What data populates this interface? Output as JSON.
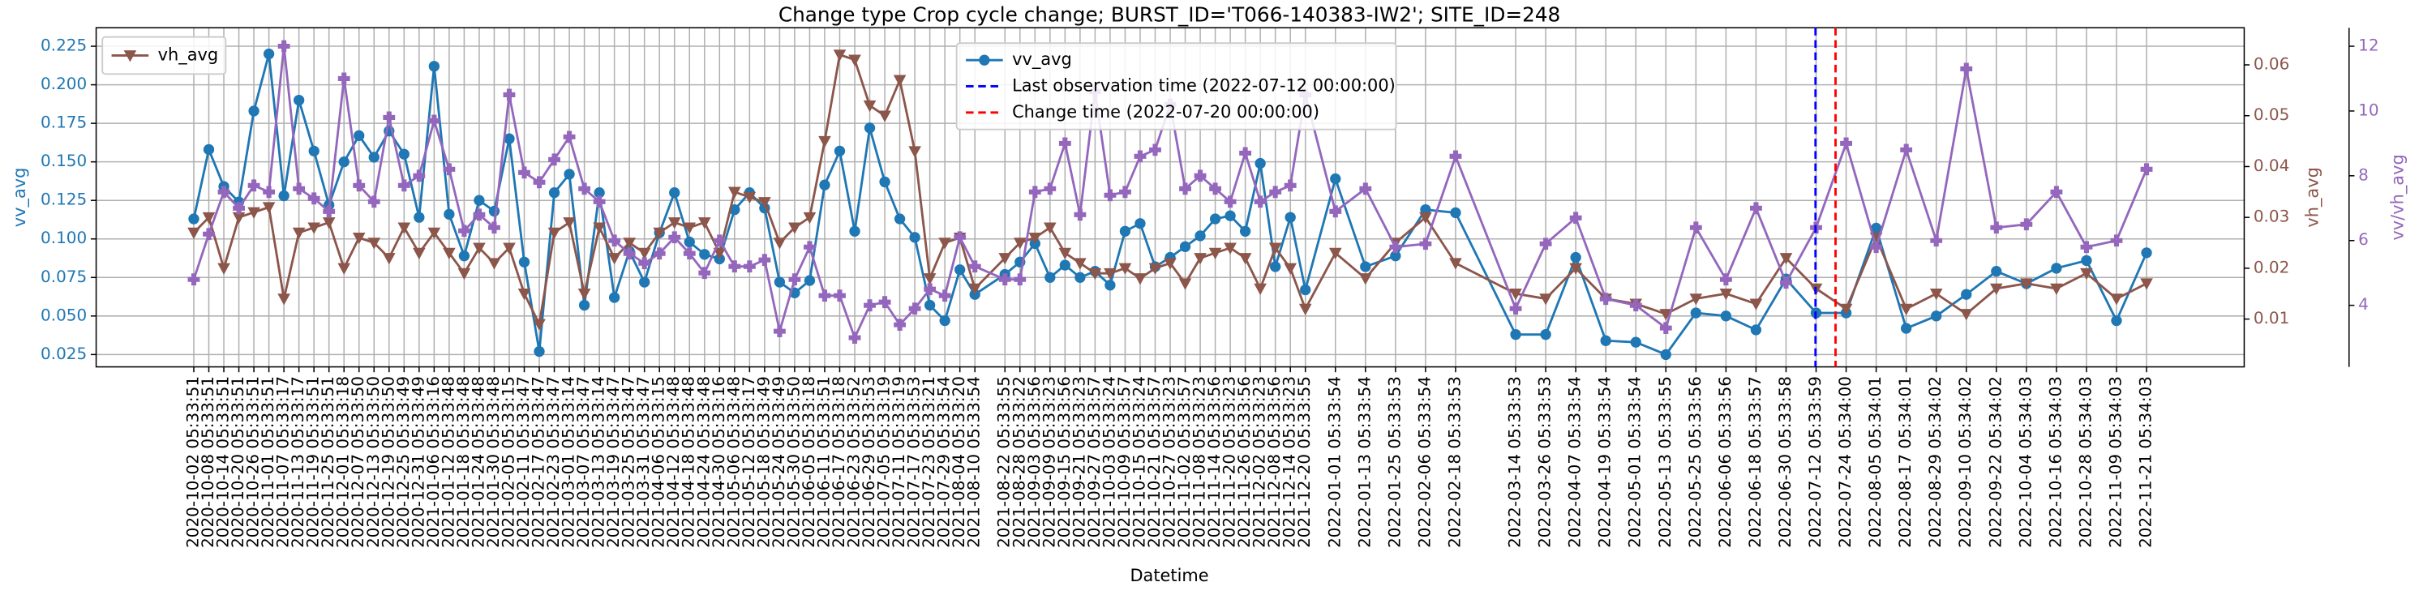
{
  "chart_data": {
    "type": "line",
    "title": "Change type Crop cycle change; BURST_ID='T066-140383-IW2'; SITE_ID=248",
    "x_label": "Datetime",
    "y_label": "vv_avg",
    "y2_label": "vh_avg",
    "y3_label": "vv/vh_avg",
    "grid": true,
    "x": [
      "2020-10-02 05:33:51",
      "2020-10-08 05:33:51",
      "2020-10-14 05:33:51",
      "2020-10-20 05:33:51",
      "2020-10-26 05:33:51",
      "2020-11-01 05:33:51",
      "2020-11-07 05:33:17",
      "2020-11-13 05:33:17",
      "2020-11-19 05:33:51",
      "2020-11-25 05:33:51",
      "2020-12-01 05:33:18",
      "2020-12-07 05:33:50",
      "2020-12-13 05:33:50",
      "2020-12-19 05:33:50",
      "2020-12-25 05:33:49",
      "2020-12-31 05:33:49",
      "2021-01-06 05:33:16",
      "2021-01-12 05:33:48",
      "2021-01-18 05:33:48",
      "2021-01-24 05:33:48",
      "2021-01-30 05:33:48",
      "2021-02-05 05:33:15",
      "2021-02-11 05:33:47",
      "2021-02-17 05:33:47",
      "2021-02-23 05:33:47",
      "2021-03-01 05:33:14",
      "2021-03-07 05:33:47",
      "2021-03-13 05:33:14",
      "2021-03-19 05:33:47",
      "2021-03-25 05:33:47",
      "2021-03-31 05:33:47",
      "2021-04-06 05:33:15",
      "2021-04-12 05:33:48",
      "2021-04-18 05:33:48",
      "2021-04-24 05:33:48",
      "2021-04-30 05:33:16",
      "2021-05-06 05:33:48",
      "2021-05-12 05:33:17",
      "2021-05-18 05:33:49",
      "2021-05-24 05:33:49",
      "2021-05-30 05:33:50",
      "2021-06-05 05:33:18",
      "2021-06-11 05:33:51",
      "2021-06-17 05:33:18",
      "2021-06-23 05:33:52",
      "2021-06-29 05:33:53",
      "2021-07-05 05:33:19",
      "2021-07-11 05:33:19",
      "2021-07-17 05:33:53",
      "2021-07-23 05:33:21",
      "2021-07-29 05:33:54",
      "2021-08-04 05:33:20",
      "2021-08-10 05:33:54",
      "2021-08-22 05:33:55",
      "2021-08-28 05:33:22",
      "2021-09-03 05:33:56",
      "2021-09-09 05:33:23",
      "2021-09-15 05:33:56",
      "2021-09-21 05:33:23",
      "2021-09-27 05:33:57",
      "2021-10-03 05:33:24",
      "2021-10-09 05:33:57",
      "2021-10-15 05:33:24",
      "2021-10-21 05:33:57",
      "2021-10-27 05:33:23",
      "2021-11-02 05:33:57",
      "2021-11-08 05:33:23",
      "2021-11-14 05:33:56",
      "2021-11-20 05:33:23",
      "2021-11-26 05:33:56",
      "2021-12-02 05:33:23",
      "2021-12-08 05:33:56",
      "2021-12-14 05:33:23",
      "2021-12-20 05:33:55",
      "2022-01-01 05:33:54",
      "2022-01-13 05:33:54",
      "2022-01-25 05:33:53",
      "2022-02-06 05:33:54",
      "2022-02-18 05:33:53",
      "2022-03-14 05:33:53",
      "2022-03-26 05:33:53",
      "2022-04-07 05:33:54",
      "2022-04-19 05:33:54",
      "2022-05-01 05:33:54",
      "2022-05-13 05:33:55",
      "2022-05-25 05:33:56",
      "2022-06-06 05:33:56",
      "2022-06-18 05:33:57",
      "2022-06-30 05:33:58",
      "2022-07-12 05:33:59",
      "2022-07-24 05:34:00",
      "2022-08-05 05:34:01",
      "2022-08-17 05:34:01",
      "2022-08-29 05:34:02",
      "2022-09-10 05:34:02",
      "2022-09-22 05:34:02",
      "2022-10-04 05:34:03",
      "2022-10-16 05:34:03",
      "2022-10-28 05:34:03",
      "2022-11-09 05:34:03",
      "2022-11-21 05:34:03"
    ],
    "xlim": [
      "2020-08-24 05:33:51",
      "2022-12-30 05:34:03"
    ],
    "ylim": [
      0.017,
      0.237
    ],
    "yticks": [
      0.025,
      {
        "value": 0.05,
        "label": "0.050"
      },
      0.075,
      {
        "value": 0.1,
        "label": "0.100"
      },
      0.125,
      {
        "value": 0.15,
        "label": "0.150"
      },
      0.175,
      {
        "value": 0.2,
        "label": "0.200"
      },
      0.225
    ],
    "y2lim": [
      0.0006,
      0.0673
    ],
    "y2ticks": [
      0.01,
      0.02,
      0.03,
      0.04,
      0.05,
      0.06
    ],
    "y3lim": [
      2.1,
      12.57
    ],
    "y3ticks": [
      4,
      6,
      8,
      10,
      12
    ],
    "series": [
      {
        "name": "vv_avg",
        "color": "#1f77b4",
        "marker": "circle",
        "axis": "y",
        "values": [
          0.113,
          0.158,
          0.134,
          0.124,
          0.183,
          0.22,
          0.128,
          0.19,
          0.157,
          0.122,
          0.15,
          0.167,
          0.153,
          0.17,
          0.155,
          0.114,
          0.212,
          0.116,
          0.089,
          0.125,
          0.118,
          0.165,
          0.085,
          0.027,
          0.13,
          0.142,
          0.057,
          0.13,
          0.062,
          0.092,
          0.072,
          0.104,
          0.13,
          0.098,
          0.09,
          0.087,
          0.119,
          0.13,
          0.12,
          0.072,
          0.065,
          0.073,
          0.135,
          0.157,
          0.105,
          0.172,
          0.137,
          0.113,
          0.101,
          0.057,
          0.047,
          0.08,
          0.064,
          0.077,
          0.085,
          0.097,
          0.075,
          0.083,
          0.075,
          0.079,
          0.07,
          0.105,
          0.11,
          0.082,
          0.088,
          0.095,
          0.102,
          0.113,
          0.115,
          0.105,
          0.149,
          0.082,
          0.114,
          0.067,
          0.139,
          0.082,
          0.089,
          0.119,
          0.117,
          0.038,
          0.038,
          0.088,
          0.034,
          0.033,
          0.025,
          0.052,
          0.05,
          0.041,
          0.074,
          0.052,
          0.052,
          0.107,
          0.042,
          0.05,
          0.064,
          0.079,
          0.071,
          0.081,
          0.086,
          0.047,
          0.091
        ]
      },
      {
        "name": "vh_avg",
        "color": "#8c564b",
        "marker": "triangle",
        "axis": "y2",
        "values": [
          0.027,
          0.03,
          0.02,
          0.03,
          0.031,
          0.032,
          0.014,
          0.027,
          0.028,
          0.029,
          0.02,
          0.026,
          0.025,
          0.022,
          0.028,
          0.023,
          0.027,
          0.023,
          0.019,
          0.024,
          0.021,
          0.024,
          0.015,
          0.009,
          0.027,
          0.029,
          0.015,
          0.028,
          0.022,
          0.025,
          0.023,
          0.027,
          0.029,
          0.028,
          0.029,
          0.023,
          0.035,
          0.034,
          0.033,
          0.025,
          0.028,
          0.03,
          0.045,
          0.062,
          0.061,
          0.052,
          0.05,
          0.057,
          0.043,
          0.018,
          0.025,
          0.026,
          0.016,
          0.022,
          0.025,
          0.026,
          0.028,
          0.023,
          0.021,
          0.019,
          0.019,
          0.02,
          0.018,
          0.02,
          0.021,
          0.017,
          0.022,
          0.023,
          0.024,
          0.022,
          0.016,
          0.024,
          0.02,
          0.012,
          0.023,
          0.018,
          0.025,
          0.03,
          0.021,
          0.015,
          0.014,
          0.02,
          0.014,
          0.013,
          0.011,
          0.014,
          0.015,
          0.013,
          0.022,
          0.016,
          0.012,
          0.026,
          0.012,
          0.015,
          0.011,
          0.016,
          0.017,
          0.016,
          0.019,
          0.014,
          0.017
        ]
      },
      {
        "color": "#9467bd",
        "marker": "plus",
        "axis": "y3",
        "values": [
          4.8,
          6.2,
          7.5,
          7.0,
          7.7,
          7.5,
          12.0,
          7.6,
          7.3,
          6.9,
          11.0,
          7.7,
          7.2,
          9.8,
          7.7,
          8.0,
          9.7,
          8.2,
          6.3,
          6.8,
          6.4,
          10.5,
          8.1,
          7.8,
          8.5,
          9.2,
          7.6,
          7.2,
          6.0,
          5.6,
          5.3,
          5.6,
          6.1,
          5.6,
          5.0,
          6.0,
          5.2,
          5.2,
          5.4,
          3.2,
          4.8,
          5.8,
          4.3,
          4.3,
          3.0,
          4.0,
          4.1,
          3.4,
          3.9,
          4.5,
          4.3,
          6.1,
          5.2,
          4.8,
          4.8,
          7.5,
          7.6,
          9.0,
          6.8,
          10.6,
          7.4,
          7.5,
          8.6,
          8.8,
          10.2,
          7.6,
          8.0,
          7.6,
          7.2,
          8.7,
          7.2,
          7.5,
          7.7,
          10.5,
          6.9,
          7.6,
          5.8,
          5.9,
          8.6,
          3.9,
          5.9,
          6.7,
          4.2,
          4.0,
          3.3,
          6.4,
          4.8,
          7.0,
          4.7,
          6.4,
          9.0,
          5.8,
          8.8,
          6.0,
          11.3,
          6.4,
          6.5,
          7.5,
          5.8,
          6.0,
          8.2
        ]
      }
    ],
    "vlines": [
      {
        "x": "2022-07-12 00:00:00",
        "color": "#0000ff",
        "label": "Last observation time (2022-07-12 00:00:00)"
      },
      {
        "x": "2022-07-20 00:00:00",
        "color": "#ff0000",
        "label": "Change time (2022-07-20 00:00:00)"
      }
    ]
  }
}
